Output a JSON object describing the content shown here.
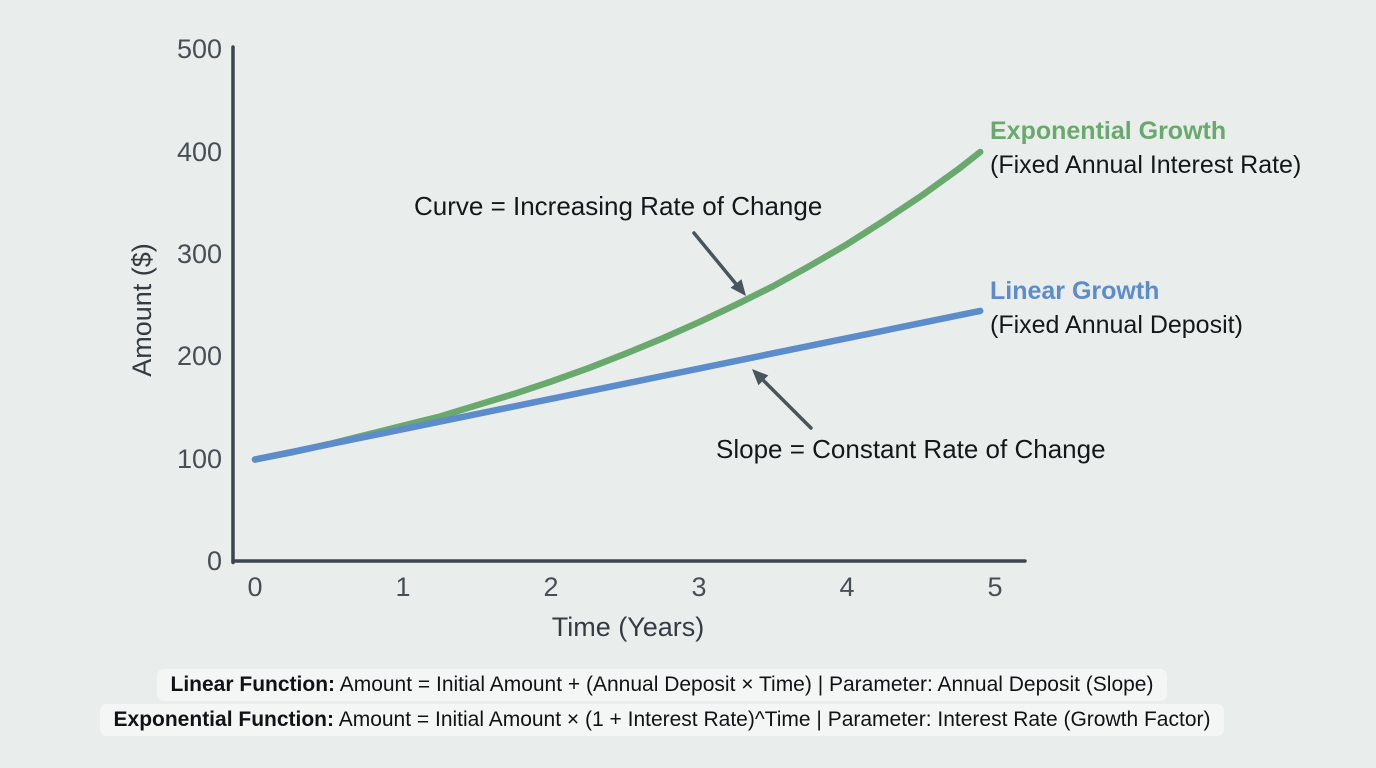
{
  "colors": {
    "background": "#e9eeec",
    "axis": "#3e464d",
    "arrow": "#4a545d",
    "formula_pill": "#f3f6f4",
    "exponential_green": "#6aa96e",
    "linear_blue": "#5c8ccc"
  },
  "chart_data": {
    "type": "line",
    "title": "",
    "xlabel": "Time (Years)",
    "ylabel": "Amount ($)",
    "xlim": [
      0,
      5
    ],
    "ylim": [
      0,
      500
    ],
    "grid": false,
    "legend_position": "right-of-line-ends",
    "x_ticks": [
      "0",
      "1",
      "2",
      "3",
      "4",
      "5"
    ],
    "y_ticks_top_to_bottom": [
      "500",
      "400",
      "300",
      "200",
      "100",
      "0"
    ],
    "series": [
      {
        "name": "Exponential Growth",
        "subtitle": "(Fixed Annual Interest Rate)",
        "color": "#6aa96e",
        "x": [
          0,
          0.25,
          0.5,
          0.75,
          1,
          1.25,
          1.5,
          1.75,
          2,
          2.25,
          2.5,
          2.75,
          3,
          3.25,
          3.5,
          3.75,
          4,
          4.25,
          4.5,
          4.75,
          4.9
        ],
        "y": [
          100,
          107,
          115,
          124,
          133,
          142,
          153,
          164,
          176,
          189,
          203,
          218,
          234,
          251,
          269,
          289,
          310,
          333,
          357,
          383,
          400
        ]
      },
      {
        "name": "Linear Growth",
        "subtitle": "(Fixed Annual Deposit)",
        "color": "#5c8ccc",
        "x": [
          0,
          4.9
        ],
        "y": [
          100,
          245
        ]
      }
    ],
    "annotations": [
      {
        "text": "Curve = Increasing Rate of Change",
        "points_to": "exponential curve"
      },
      {
        "text": "Slope = Constant Rate of Change",
        "points_to": "linear line"
      }
    ]
  },
  "formulas": [
    {
      "label": "Linear Function:",
      "text": " Amount = Initial Amount + (Annual Deposit × Time) | Parameter: Annual Deposit (Slope)"
    },
    {
      "label": "Exponential Function:",
      "text": " Amount = Initial Amount × (1 + Interest Rate)^Time | Parameter: Interest Rate (Growth Factor)"
    }
  ]
}
